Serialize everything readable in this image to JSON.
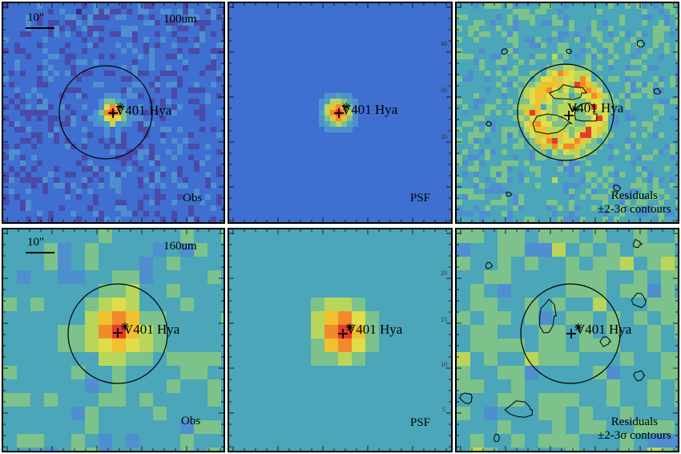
{
  "figure": {
    "rows": [
      {
        "band": "100um",
        "scale_label": "10\"",
        "panels": [
          {
            "kind": "obs",
            "target_label": "V401 Hya",
            "corner_label": "Obs"
          },
          {
            "kind": "psf",
            "target_label": "V401 Hya",
            "corner_label": "PSF"
          },
          {
            "kind": "residual",
            "target_label": "V401 Hya",
            "corner_label": "Residuals",
            "corner_label_2": "±2-3σ contours"
          }
        ],
        "axis_ticks": [
          "40",
          "30",
          "20"
        ]
      },
      {
        "band": "160um",
        "scale_label": "10\"",
        "panels": [
          {
            "kind": "obs",
            "target_label": "V401 Hya",
            "corner_label": "Obs"
          },
          {
            "kind": "psf",
            "target_label": "V401 Hya",
            "corner_label": "PSF"
          },
          {
            "kind": "residual",
            "target_label": "V401 Hya",
            "corner_label": "Residuals",
            "corner_label_2": "±2-3σ contours"
          }
        ],
        "axis_ticks": [
          "20",
          "15",
          "10",
          "5"
        ]
      }
    ]
  },
  "colors": {
    "low": "#3b2a8c",
    "mid_low": "#3f6fd0",
    "mid": "#4aa6b8",
    "mid_high": "#b9d65a",
    "high": "#f0c030",
    "peak": "#e83a2a",
    "contour": "#000000"
  }
}
